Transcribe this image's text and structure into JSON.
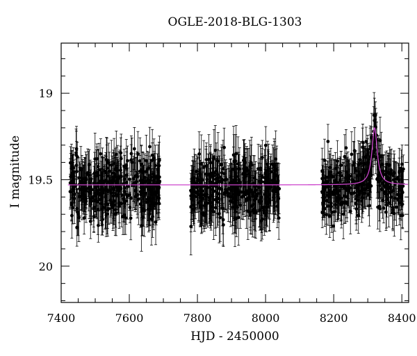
{
  "chart_data": {
    "type": "scatter",
    "title": "OGLE-2018-BLG-1303",
    "xlabel": "HJD - 2450000",
    "ylabel": "I magnitude",
    "xlim": [
      7400,
      8420
    ],
    "ylim": [
      18.71,
      20.21
    ],
    "y_inverted": true,
    "xticks": [
      7400,
      7600,
      7800,
      8000,
      8200,
      8400
    ],
    "yticks": [
      19,
      19.5,
      20
    ],
    "ytick_labels": [
      "19",
      "19.5",
      "20"
    ],
    "grid": false,
    "legend": "none",
    "colors": {
      "points": "#000000",
      "model": "#cc44cc"
    },
    "series": [
      {
        "type": "scatter_errorbars",
        "description_of_distribution": "three observing seasons of photometry with error bars",
        "seasons": [
          {
            "x_range": [
              7425,
              7690
            ],
            "mean_mag": 19.55,
            "scatter_mag": 0.12,
            "typical_err": 0.12
          },
          {
            "x_range": [
              7780,
              8040
            ],
            "mean_mag": 19.55,
            "scatter_mag": 0.12,
            "typical_err": 0.13
          },
          {
            "x_range": [
              8165,
              8405
            ],
            "mean_mag": 19.55,
            "scatter_mag": 0.11,
            "typical_err": 0.11
          }
        ],
        "peak": {
          "x": 8318,
          "mag": 19.1
        }
      },
      {
        "type": "line",
        "baseline_mag": 19.53,
        "peak_x": 8320,
        "peak_mag": 19.2,
        "width_days": 14
      }
    ]
  }
}
